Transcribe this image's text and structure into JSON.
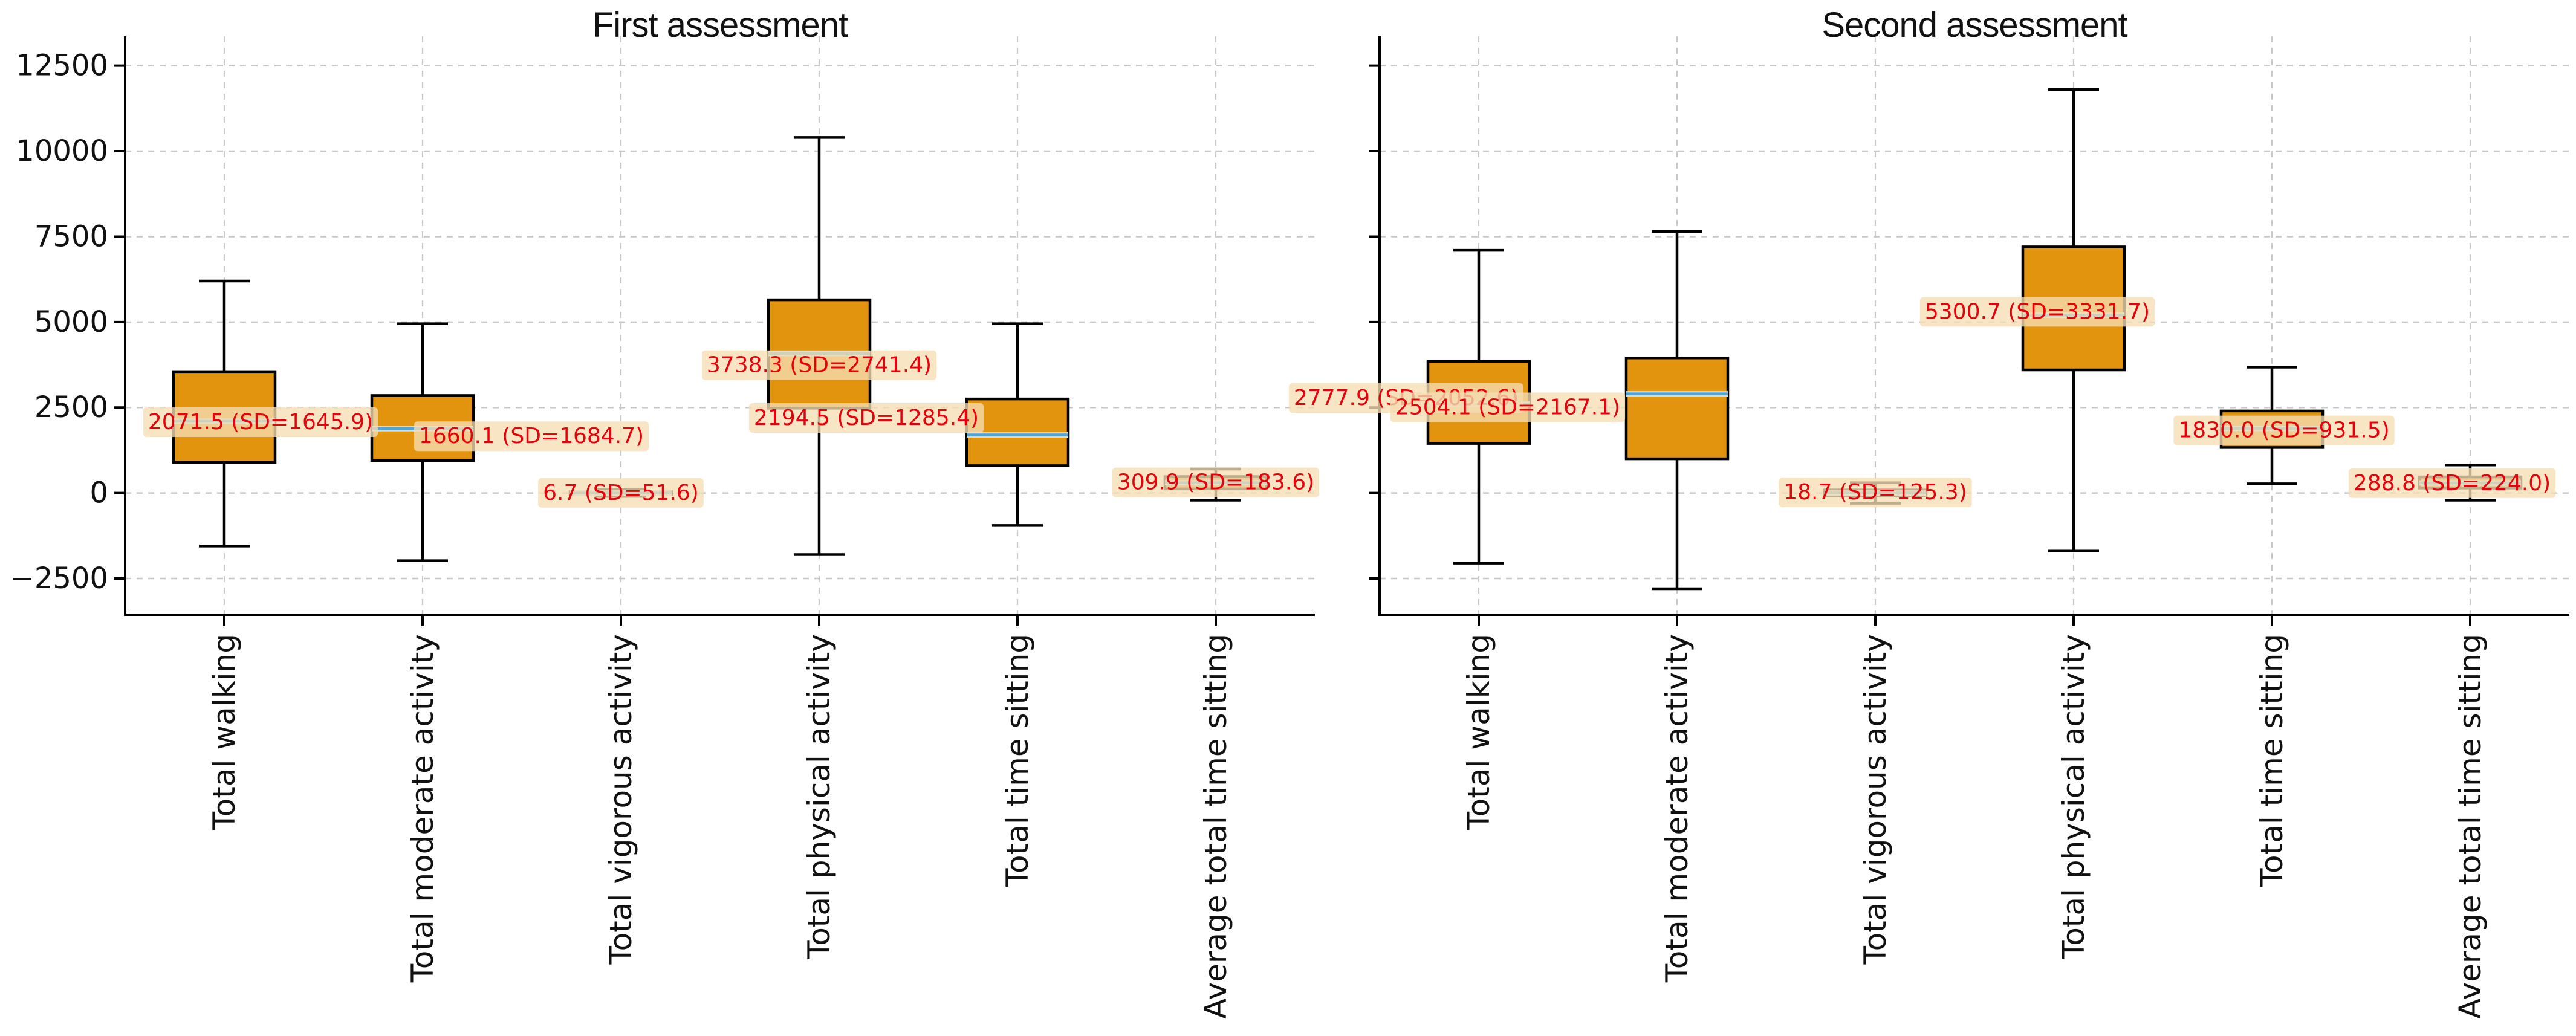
{
  "figure": {
    "background": "#ffffff"
  },
  "colors": {
    "box_fill": "#E2940E",
    "box_edge": "#000000",
    "whisker": "#000000",
    "median_line_core": "#4DA6D6",
    "median_line_halo": "#BFE0F2",
    "annotation_text": "#E8000B",
    "annotation_bg": "#F5DEB3",
    "gridline": "#C8C8C8",
    "axis_line": "#000000",
    "tick_label": "#111111",
    "title": "#111111"
  },
  "y_axis": {
    "min": -3560,
    "max": 13360,
    "ticks": [
      -2500,
      0,
      2500,
      5000,
      7500,
      10000,
      12500
    ],
    "tick_labels": [
      "−2500",
      "0",
      "2500",
      "5000",
      "7500",
      "10000",
      "12500"
    ],
    "grid": true
  },
  "categories": [
    "Total walking",
    "Total moderate activity",
    "Total vigorous activity",
    "Total physical activity",
    "Total time sitting",
    "Average total time sitting"
  ],
  "chart_data": [
    {
      "type": "box",
      "title": "First assessment",
      "categories": [
        "Total walking",
        "Total moderate activity",
        "Total vigorous activity",
        "Total physical activity",
        "Total time sitting",
        "Average total time sitting"
      ],
      "series": [
        {
          "category": "Total walking",
          "mean": 2071.5,
          "sd": 1645.9,
          "label": "2071.5 (SD=1645.9)",
          "whisker_low": -1550,
          "q1": 900,
          "median": 2100,
          "q3": 3550,
          "whisker_high": 6200,
          "label_dx": 60
        },
        {
          "category": "Total moderate activity",
          "mean": 1660.1,
          "sd": 1684.7,
          "label": "1660.1 (SD=1684.7)",
          "whisker_low": -1980,
          "q1": 950,
          "median": 1880,
          "q3": 2850,
          "whisker_high": 4950,
          "label_dx": 180
        },
        {
          "category": "Total vigorous activity",
          "mean": 6.7,
          "sd": 51.6,
          "label": "6.7 (SD=51.6)",
          "whisker_low": -100,
          "q1": -40,
          "median": 0,
          "q3": 40,
          "whisker_high": 100,
          "label_dx": 0
        },
        {
          "category": "Total physical activity",
          "mean": 3738.3,
          "sd": 2741.4,
          "label": "3738.3 (SD=2741.4)",
          "whisker_low": -1800,
          "q1": 2480,
          "median": 4080,
          "q3": 5650,
          "whisker_high": 10400,
          "label_dx": 0
        },
        {
          "category": "Total time sitting",
          "mean": 2194.5,
          "sd": 1285.4,
          "label": "2194.5 (SD=1285.4)",
          "whisker_low": -950,
          "q1": 800,
          "median": 1700,
          "q3": 2750,
          "whisker_high": 4950,
          "label_dx": -250
        },
        {
          "category": "Average total time sitting",
          "mean": 309.9,
          "sd": 183.6,
          "label": "309.9 (SD=183.6)",
          "whisker_low": -210,
          "q1": 120,
          "median": 300,
          "q3": 480,
          "whisker_high": 700,
          "label_dx": 0
        }
      ]
    },
    {
      "type": "box",
      "title": "Second assessment",
      "categories": [
        "Total walking",
        "Total moderate activity",
        "Total vigorous activity",
        "Total physical activity",
        "Total time sitting",
        "Average total time sitting"
      ],
      "series": [
        {
          "category": "Total walking",
          "mean": 2777.9,
          "sd": 2052.6,
          "label": "2777.9 (SD=2052.6)",
          "whisker_low": -2050,
          "q1": 1450,
          "median": 2600,
          "q3": 3850,
          "whisker_high": 7100,
          "label_dx": -120
        },
        {
          "category": "Total moderate activity",
          "mean": 2504.1,
          "sd": 2167.1,
          "label": "2504.1 (SD=2167.1)",
          "whisker_low": -2800,
          "q1": 1000,
          "median": 2900,
          "q3": 3950,
          "whisker_high": 7650,
          "label_dx": -280
        },
        {
          "category": "Total vigorous activity",
          "mean": 18.7,
          "sd": 125.3,
          "label": "18.7 (SD=125.3)",
          "whisker_low": -300,
          "q1": -80,
          "median": 0,
          "q3": 90,
          "whisker_high": 300,
          "label_dx": 0
        },
        {
          "category": "Total physical activity",
          "mean": 5300.7,
          "sd": 3331.7,
          "label": "5300.7 (SD=3331.7)",
          "whisker_low": -1700,
          "q1": 3600,
          "median": 5200,
          "q3": 7200,
          "whisker_high": 11800,
          "label_dx": -60
        },
        {
          "category": "Total time sitting",
          "mean": 1830.0,
          "sd": 931.5,
          "label": "1830.0 (SD=931.5)",
          "whisker_low": 270,
          "q1": 1330,
          "median": 1890,
          "q3": 2400,
          "whisker_high": 3680,
          "label_dx": 20
        },
        {
          "category": "Average total time sitting",
          "mean": 288.8,
          "sd": 224.0,
          "label": "288.8 (SD=224.0)",
          "whisker_low": -210,
          "q1": 145,
          "median": 295,
          "q3": 470,
          "whisker_high": 820,
          "label_dx": -30
        }
      ]
    }
  ]
}
